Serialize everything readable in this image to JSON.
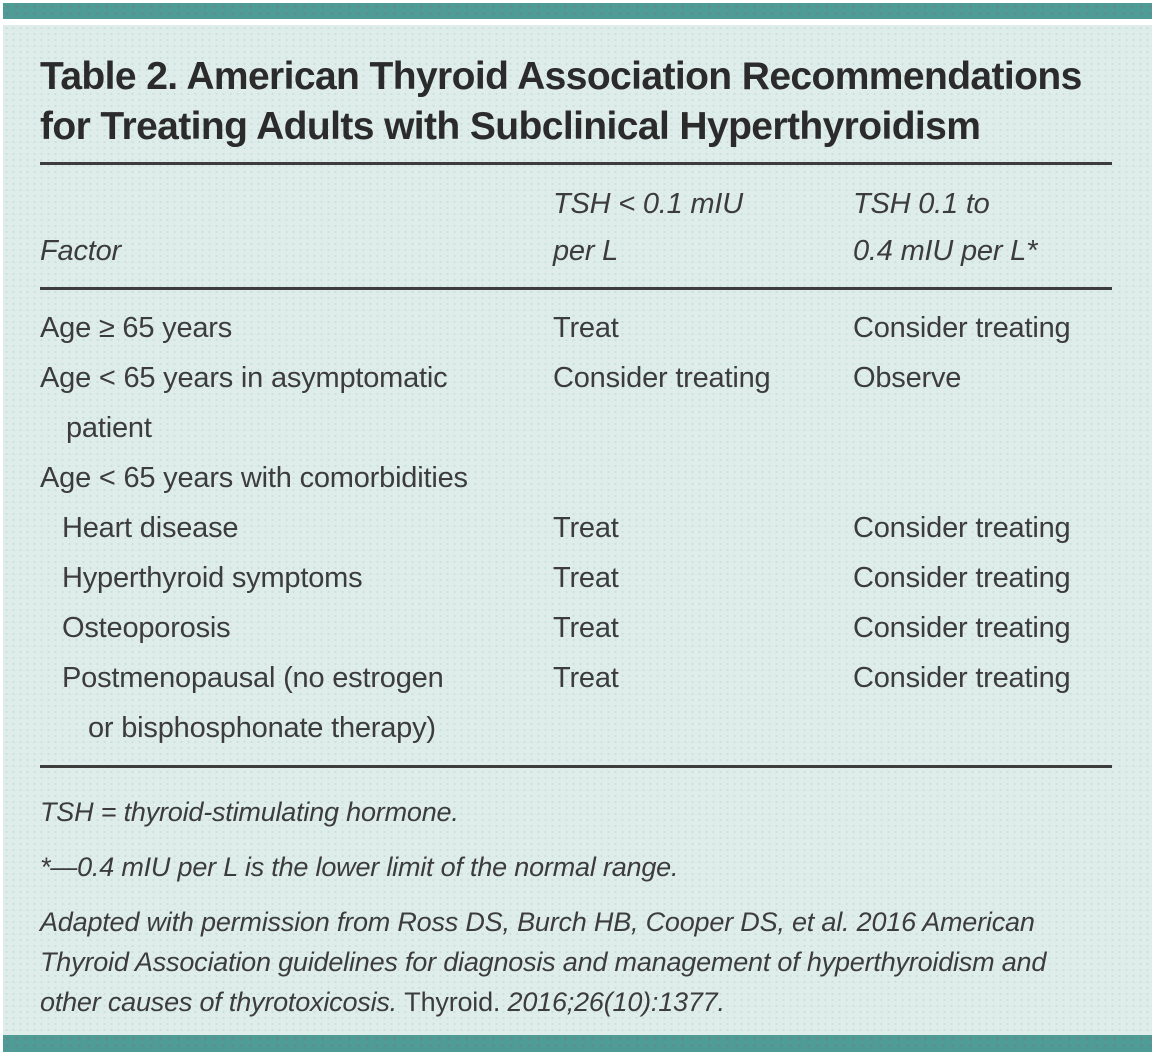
{
  "panel": {
    "title": "Table 2. American Thyroid Association Recommendations\nfor Treating Adults with Subclinical Hyperthyroidism"
  },
  "table": {
    "headers": {
      "factor": "Factor",
      "tsh_lt_0_1": "TSH < 0.1 mIU\nper L",
      "tsh_0_1_to_0_4": "TSH 0.1 to\n0.4 mIU per L*"
    },
    "rows": [
      {
        "factor": "Age ≥ 65 years",
        "tsh_lt_0_1": "Treat",
        "tsh_0_1_to_0_4": "Consider treating"
      },
      {
        "factor": "Age < 65 years in asymptomatic\npatient",
        "tsh_lt_0_1": "Consider treating",
        "tsh_0_1_to_0_4": "Observe"
      },
      {
        "factor": "Age < 65 years with comorbidities",
        "tsh_lt_0_1": "",
        "tsh_0_1_to_0_4": ""
      },
      {
        "factor": "Heart disease",
        "tsh_lt_0_1": "Treat",
        "tsh_0_1_to_0_4": "Consider treating"
      },
      {
        "factor": "Hyperthyroid symptoms",
        "tsh_lt_0_1": "Treat",
        "tsh_0_1_to_0_4": "Consider treating"
      },
      {
        "factor": "Osteoporosis",
        "tsh_lt_0_1": "Treat",
        "tsh_0_1_to_0_4": "Consider treating"
      },
      {
        "factor": "Postmenopausal (no estrogen\nor bisphosphonate therapy)",
        "tsh_lt_0_1": "Treat",
        "tsh_0_1_to_0_4": "Consider treating"
      }
    ]
  },
  "footnotes": {
    "abbreviation": "TSH = thyroid-stimulating hormone.",
    "asterisk": "*—0.4 mIU per L is the lower limit of the normal range.",
    "citation_part1": "Adapted with permission from Ross DS, Burch HB, Cooper DS, et al. 2016 American Thyroid Association guidelines for diagnosis and management of hyperthyroidism and other causes of thyrotoxicosis. ",
    "citation_journal": "Thyroid.",
    "citation_part2": " 2016;26(10):1377."
  },
  "colors": {
    "accent_teal": "#4f9b95",
    "panel_mint": "#dfedea",
    "rule_dark": "#3d3d3d",
    "text": "#3c3c3c"
  }
}
